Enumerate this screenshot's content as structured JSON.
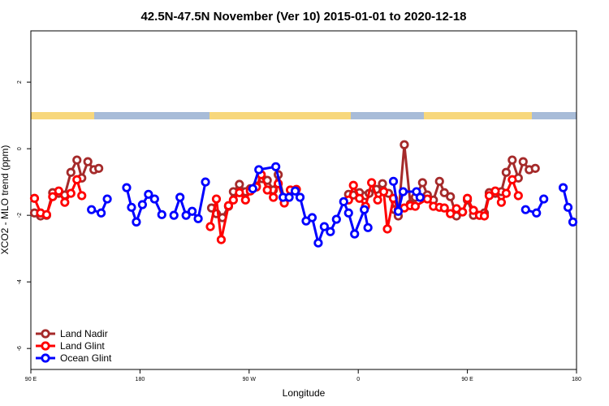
{
  "chart_data": {
    "type": "line",
    "title": "42.5N-47.5N November (Ver 10)   2015-01-01 to 2020-12-18",
    "x_label": "Longitude",
    "y_label": "XCO2 - MLO trend (ppm)",
    "xlim": [
      90,
      540
    ],
    "ylim": [
      -6.63,
      3.54
    ],
    "xticks": [
      {
        "value": 90,
        "label": "90 E"
      },
      {
        "value": 180,
        "label": "180"
      },
      {
        "value": 270,
        "label": "90 W"
      },
      {
        "value": 360,
        "label": "0"
      },
      {
        "value": 450,
        "label": "90 E"
      },
      {
        "value": 540,
        "label": "180"
      }
    ],
    "yticks": [
      2,
      0,
      -2,
      -4,
      -6
    ],
    "legend": "bottom-left",
    "series": [
      {
        "name": "Land Nadir",
        "color": "#a52a2a",
        "x": [
          93,
          98,
          103,
          108,
          113,
          118,
          123,
          128,
          132,
          137,
          142,
          146,
          null,
          239,
          243,
          248,
          253,
          257,
          262,
          267,
          271,
          276,
          281,
          285,
          290,
          294,
          299,
          null,
          352,
          356,
          361,
          366,
          369,
          375,
          380,
          385,
          390,
          393,
          398,
          403,
          407,
          413,
          417,
          422,
          427,
          431,
          436,
          441,
          446,
          450,
          455,
          460,
          464,
          468,
          473,
          478,
          482,
          487,
          492,
          496,
          501,
          506
        ],
        "values": [
          -1.93,
          -2.02,
          -2.0,
          -1.32,
          -1.34,
          -1.39,
          -0.71,
          -0.34,
          -0.88,
          -0.39,
          -0.63,
          -0.59,
          null,
          -1.78,
          -1.95,
          -2.07,
          -1.73,
          -1.29,
          -1.07,
          -1.29,
          -1.2,
          -1.12,
          -0.9,
          -0.95,
          -1.24,
          -0.78,
          -1.51,
          null,
          -1.37,
          -1.39,
          -1.32,
          -1.41,
          -1.34,
          -1.22,
          -1.05,
          -1.34,
          -1.83,
          -2.02,
          0.12,
          -1.66,
          -1.46,
          -1.02,
          -1.39,
          -1.54,
          -0.98,
          -1.32,
          -1.44,
          -2.02,
          -1.9,
          -1.54,
          -2.0,
          -2.0,
          -1.93,
          -1.32,
          -1.34,
          -1.29,
          -0.71,
          -0.34,
          -0.88,
          -0.39,
          -0.63,
          -0.59
        ]
      },
      {
        "name": "Land Glint",
        "color": "#ff0000",
        "x": [
          93,
          98,
          103,
          108,
          113,
          118,
          123,
          128,
          132,
          null,
          238,
          243,
          247,
          253,
          257,
          262,
          267,
          271,
          276,
          280,
          285,
          290,
          294,
          299,
          304,
          309,
          null,
          352,
          356,
          361,
          366,
          371,
          376,
          381,
          384,
          389,
          393,
          398,
          403,
          407,
          417,
          422,
          427,
          431,
          436,
          441,
          446,
          450,
          455,
          460,
          464,
          468,
          473,
          478,
          482,
          487,
          492
        ],
        "values": [
          -1.49,
          -1.93,
          -1.98,
          -1.44,
          -1.27,
          -1.61,
          -1.34,
          -0.93,
          -1.41,
          null,
          -2.34,
          -1.51,
          -2.73,
          -1.71,
          -1.54,
          -1.32,
          -1.54,
          -1.27,
          -1.15,
          -0.78,
          -1.24,
          -1.46,
          -1.05,
          -1.63,
          -1.24,
          -1.22,
          null,
          -1.54,
          -1.1,
          -1.49,
          -1.73,
          -1.02,
          -1.54,
          -1.29,
          -2.41,
          -1.49,
          -1.83,
          -1.78,
          -1.71,
          -1.73,
          -1.51,
          -1.73,
          -1.76,
          -1.78,
          -1.95,
          -1.8,
          -1.9,
          -1.49,
          -1.85,
          -2.0,
          -2.02,
          -1.41,
          -1.27,
          -1.61,
          -1.34,
          -0.93,
          -1.41
        ]
      },
      {
        "name": "Ocean Glint",
        "color": "#0000ff",
        "x": [
          140,
          148,
          153,
          null,
          169,
          173,
          177,
          182,
          187,
          192,
          198,
          null,
          208,
          213,
          218,
          223,
          228,
          234,
          null,
          273,
          278,
          292,
          298,
          303,
          308,
          312,
          317,
          322,
          327,
          332,
          337,
          342,
          348,
          352,
          357,
          365,
          368,
          null,
          389,
          393,
          397,
          408,
          411,
          null,
          498,
          507,
          513,
          null,
          529,
          533,
          537
        ],
        "values": [
          -1.83,
          -1.93,
          -1.51,
          null,
          -1.17,
          -1.76,
          -2.2,
          -1.68,
          -1.37,
          -1.51,
          -1.98,
          null,
          -2.0,
          -1.46,
          -2.0,
          -1.88,
          -2.1,
          -1.0,
          null,
          -1.2,
          -0.63,
          -0.54,
          -1.46,
          -1.46,
          -1.27,
          -1.46,
          -2.17,
          -2.07,
          -2.83,
          -2.34,
          -2.49,
          -2.12,
          -1.59,
          -1.93,
          -2.56,
          -1.83,
          -2.37,
          null,
          -0.98,
          -1.88,
          -1.29,
          -1.29,
          -1.46,
          null,
          -1.83,
          -1.93,
          -1.51,
          null,
          -1.17,
          -1.76,
          -2.2
        ]
      }
    ]
  }
}
